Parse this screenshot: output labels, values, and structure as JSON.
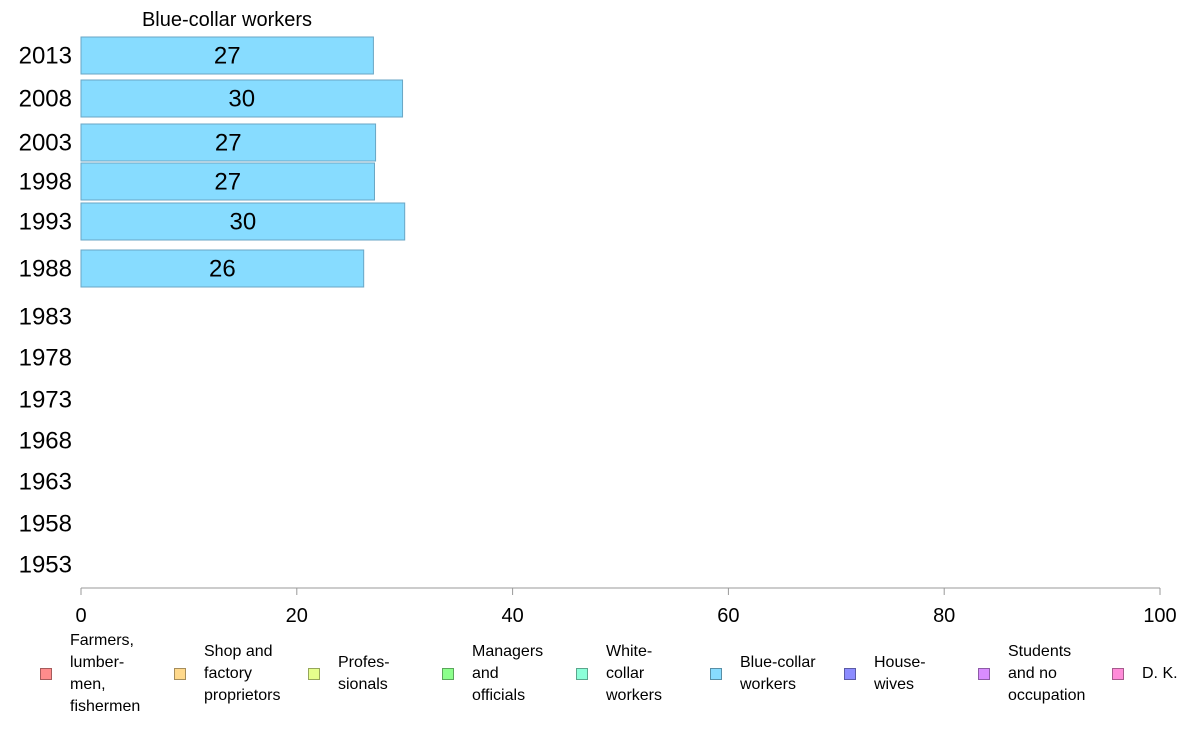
{
  "chart_data": {
    "type": "bar",
    "orientation": "horizontal",
    "panel_title": "Blue-collar workers",
    "categories": [
      "2013",
      "2008",
      "2003",
      "1998",
      "1993",
      "1988",
      "1983",
      "1978",
      "1973",
      "1968",
      "1963",
      "1958",
      "1953"
    ],
    "series": [
      {
        "name": "Blue-collar workers",
        "color": "#87dcff",
        "values": [
          27.1,
          29.8,
          27.3,
          27.2,
          30.0,
          26.2,
          null,
          null,
          null,
          null,
          null,
          null,
          null
        ],
        "labels": [
          "27",
          "30",
          "27",
          "27",
          "30",
          "26",
          "",
          "",
          "",
          "",
          "",
          "",
          ""
        ]
      }
    ],
    "xlim": [
      0,
      100
    ],
    "xticks": [
      "0",
      "20",
      "40",
      "60",
      "80",
      "100"
    ],
    "grid": false,
    "legend_position": "bottom",
    "legend": [
      {
        "label": "Farmers,\nlumber-\nmen,\nfishermen",
        "color": "#ff8c8c"
      },
      {
        "label": "Shop and\nfactory\nproprietors",
        "color": "#ffd98c"
      },
      {
        "label": "Profes-\nsionals",
        "color": "#e6ff8c"
      },
      {
        "label": "Managers\nand\nofficials",
        "color": "#8cff8c"
      },
      {
        "label": "White-\ncollar\nworkers",
        "color": "#8cffd9"
      },
      {
        "label": "Blue-collar\nworkers",
        "color": "#87dcff"
      },
      {
        "label": "House-\nwives",
        "color": "#8c8cff"
      },
      {
        "label": "Students\nand no\noccupation",
        "color": "#d98cff"
      },
      {
        "label": "D. K.",
        "color": "#ff8cd9"
      }
    ]
  }
}
